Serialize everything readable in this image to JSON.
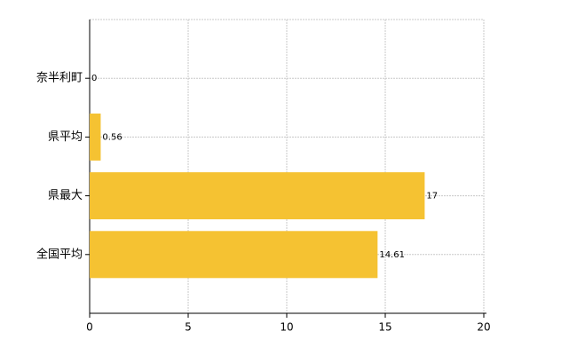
{
  "chart_data": {
    "type": "hbar",
    "categories": [
      "奈半利町",
      "県平均",
      "県最大",
      "全国平均"
    ],
    "values": [
      0,
      0.56,
      17,
      14.61
    ],
    "color": "#f5c232",
    "xlim": [
      0,
      20
    ],
    "xticks": [
      0,
      5,
      10,
      15,
      20
    ],
    "grid": true
  }
}
